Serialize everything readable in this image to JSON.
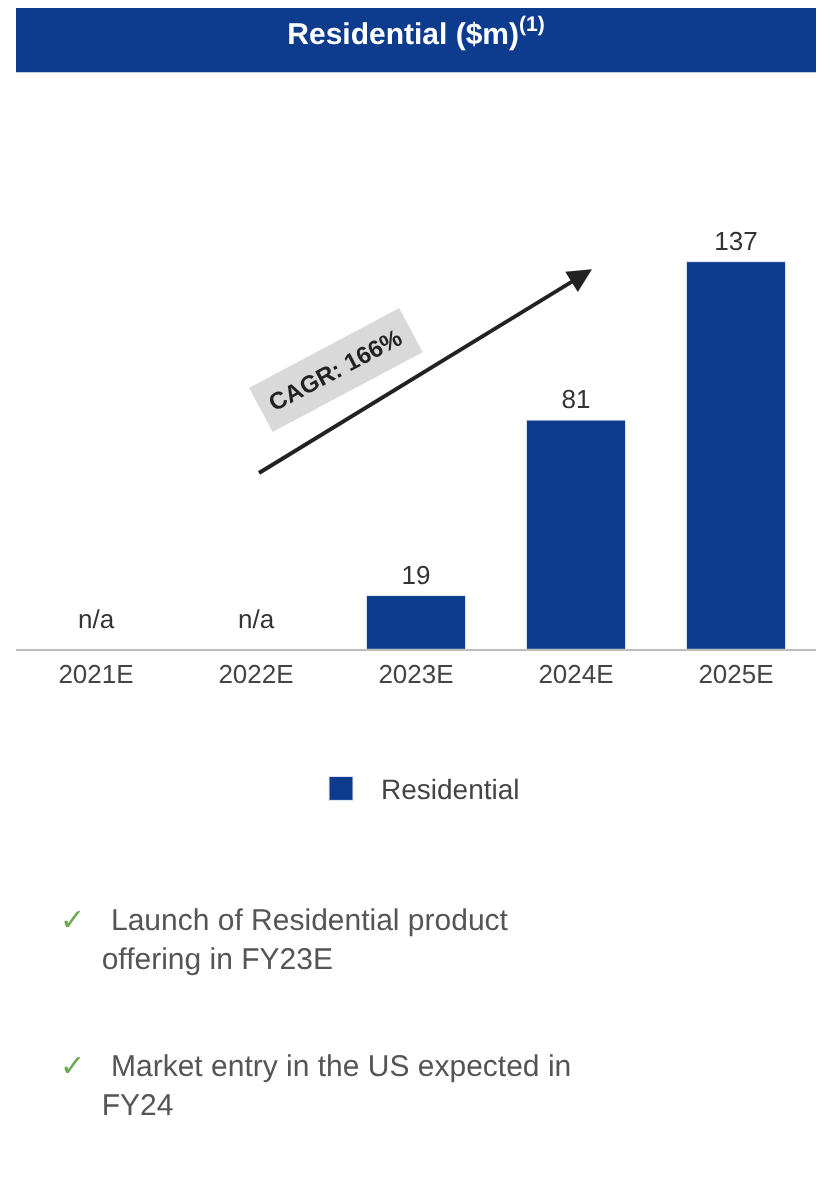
{
  "chart_data": {
    "type": "bar",
    "title": "Residential ($m)$^{(1)}$",
    "categories": [
      "2021E",
      "2022E",
      "2023E",
      "2024E",
      "2025E"
    ],
    "series": [
      {
        "name": "Residential",
        "color": "#0d3b8e",
        "values": [
          null,
          null,
          19,
          81,
          137
        ],
        "value_labels": [
          "n/a",
          "n/a",
          "19",
          "81",
          "137"
        ]
      }
    ],
    "legend": "bottom",
    "annotations": [
      "CAGR: 166%",
      "✓ Launch of Residential product offering in FY23E",
      "✓ Market entry in the US expected in FY24"
    ]
  }
}
